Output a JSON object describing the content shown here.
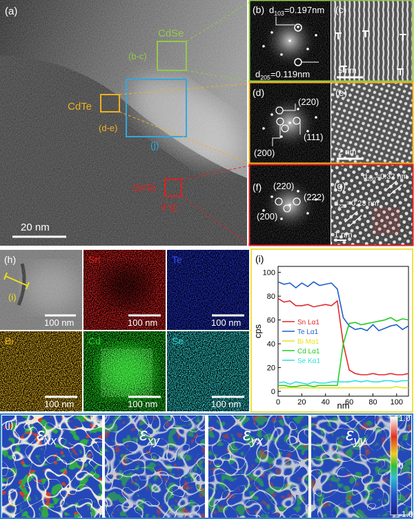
{
  "panels": {
    "a": {
      "label": "(a)",
      "cdse": "CdSe",
      "cdse_ref": "(b-c)",
      "cdte": "CdTe",
      "cdte_ref": "(d-e)",
      "j_ref": "(j)",
      "snte": "SnTe",
      "snte_ref": "(f-g)",
      "scale_bar": "20 nm"
    },
    "b": {
      "label": "(b)",
      "d1": {
        "symbol": "d",
        "sub": "103",
        "value": "=0.197nm"
      },
      "d2": {
        "symbol": "d",
        "sub": "205",
        "value": "=0.119nm"
      }
    },
    "c": {
      "label": "(c)",
      "scale_bar": "5 nm"
    },
    "d": {
      "label": "(d)",
      "spots": [
        "(220)",
        "(111)",
        "(200)"
      ]
    },
    "e": {
      "label": "(e)",
      "scale_bar": "2 nm"
    },
    "f": {
      "label": "(f)",
      "spots": [
        "(220)",
        "(222)",
        "(200)"
      ]
    },
    "g": {
      "label": "(g)",
      "d1": {
        "symbol": "d",
        "sub": "200",
        "value": "=0.32 nm"
      },
      "d2": {
        "symbol": "d",
        "sub": "220",
        "value": "=0.23 nm"
      },
      "scale_bar": "1 nm"
    },
    "h": {
      "label": "(h)",
      "line_label": "(i)",
      "scale_bar": "100 nm",
      "maps": [
        {
          "title": "Sn",
          "scale_bar": "100 nm"
        },
        {
          "title": "Te",
          "scale_bar": "100 nm"
        },
        {
          "title": "Bi",
          "scale_bar": "100 nm"
        },
        {
          "title": "Cd",
          "scale_bar": "100 nm"
        },
        {
          "title": "Se",
          "scale_bar": "100 nm"
        }
      ]
    },
    "j": {
      "label": "(j)",
      "maps": [
        {
          "symbol": "ε",
          "sub": "xx"
        },
        {
          "symbol": "ε",
          "sub": "xy"
        },
        {
          "symbol": "ε",
          "sub": "yx"
        },
        {
          "symbol": "ε",
          "sub": "yy"
        }
      ],
      "colorbar_ticks": [
        {
          "value": 1,
          "label": "1.0"
        },
        0,
        {
          "value": -1,
          "label": "-1.0"
        }
      ]
    }
  },
  "chart_data": {
    "type": "line",
    "label": "(i)",
    "xlabel": "nm",
    "ylabel": "cps",
    "x": [
      0,
      5,
      10,
      15,
      20,
      25,
      30,
      35,
      40,
      45,
      50,
      55,
      60,
      65,
      70,
      75,
      80,
      85,
      90,
      95,
      100,
      105,
      110
    ],
    "series": [
      {
        "name": "Sn Lα1",
        "color": "#e0282d",
        "values": [
          78,
          75,
          76,
          72,
          72,
          73,
          71,
          72,
          73,
          72,
          76,
          40,
          18,
          15,
          14,
          14,
          15,
          14,
          14,
          15,
          14,
          14,
          15
        ]
      },
      {
        "name": "Te Lα1",
        "color": "#1f5fc8",
        "values": [
          92,
          90,
          91,
          87,
          91,
          88,
          92,
          89,
          90,
          91,
          86,
          62,
          55,
          52,
          53,
          51,
          56,
          51,
          53,
          55,
          56,
          52,
          55
        ]
      },
      {
        "name": "Bi Mα1",
        "color": "#ece020",
        "values": [
          3,
          3,
          3,
          3,
          3,
          3,
          3,
          3,
          3,
          3,
          3,
          3,
          3,
          3,
          3,
          3,
          3,
          3,
          3,
          3,
          4,
          3,
          3
        ]
      },
      {
        "name": "Cd Lα1",
        "color": "#22cc22",
        "values": [
          5,
          5,
          4,
          4,
          5,
          5,
          4,
          5,
          5,
          5,
          5,
          40,
          57,
          58,
          56,
          57,
          58,
          59,
          60,
          62,
          59,
          61,
          60
        ]
      },
      {
        "name": "Se Kα1",
        "color": "#30dede",
        "values": [
          7,
          8,
          6,
          8,
          7,
          6,
          8,
          7,
          7,
          8,
          8,
          8,
          8,
          9,
          8,
          9,
          8,
          8,
          9,
          9,
          8,
          9,
          9
        ]
      }
    ],
    "xlim": [
      0,
      110
    ],
    "ylim": [
      -4,
      105
    ],
    "xticks": [
      0,
      20,
      40,
      60,
      80,
      100
    ],
    "yticks": [
      0,
      20,
      40,
      60,
      80,
      100
    ],
    "legend": "center left"
  }
}
